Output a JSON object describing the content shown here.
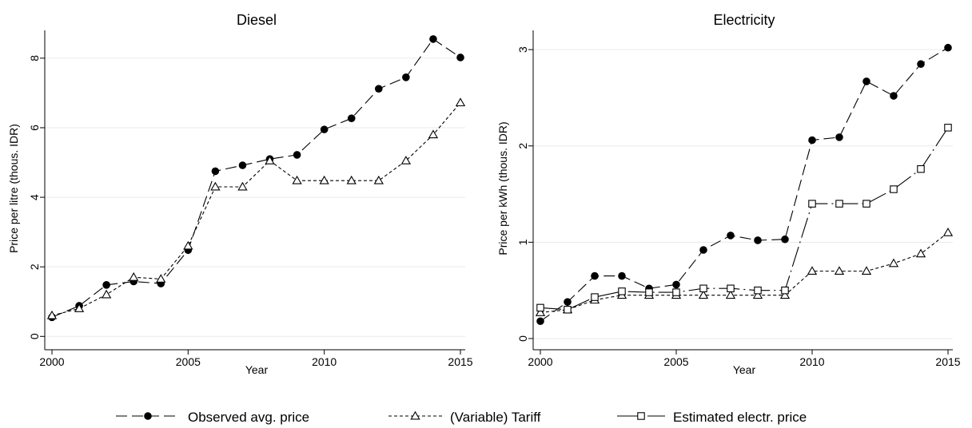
{
  "chart_data": [
    {
      "type": "line",
      "title": "Diesel",
      "xlabel": "Year",
      "ylabel": "Price per litre (thous. IDR)",
      "x": [
        2000,
        2001,
        2002,
        2003,
        2004,
        2005,
        2006,
        2007,
        2008,
        2009,
        2010,
        2011,
        2012,
        2013,
        2014,
        2015
      ],
      "xticks": [
        2000,
        2005,
        2010,
        2015
      ],
      "yticks": [
        0,
        2,
        4,
        6,
        8
      ],
      "xlim": [
        2000,
        2015
      ],
      "ylim": [
        -0.2,
        8.8
      ],
      "grid": true,
      "series": [
        {
          "name": "Observed avg. price",
          "marker": "filled-circle",
          "dash": "long-dash",
          "values": [
            0.55,
            0.88,
            1.48,
            1.58,
            1.52,
            2.48,
            4.75,
            4.92,
            5.1,
            5.22,
            5.95,
            6.27,
            7.12,
            7.45,
            8.55,
            8.02
          ]
        },
        {
          "name": "(Variable) Tariff",
          "marker": "hollow-triangle",
          "dash": "short-dash",
          "values": [
            0.6,
            0.8,
            1.2,
            1.7,
            1.65,
            2.6,
            4.3,
            4.3,
            5.05,
            4.48,
            4.48,
            4.48,
            4.48,
            5.05,
            5.8,
            6.72
          ]
        }
      ]
    },
    {
      "type": "line",
      "title": "Electricity",
      "xlabel": "Year",
      "ylabel": "Price per kWh (thous. IDR)",
      "x": [
        2000,
        2001,
        2002,
        2003,
        2004,
        2005,
        2006,
        2007,
        2008,
        2009,
        2010,
        2011,
        2012,
        2013,
        2014,
        2015
      ],
      "xticks": [
        2000,
        2005,
        2010,
        2015
      ],
      "yticks": [
        0,
        1,
        2,
        3
      ],
      "xlim": [
        2000,
        2015
      ],
      "ylim": [
        -0.05,
        3.2
      ],
      "grid": true,
      "series": [
        {
          "name": "Observed avg. price",
          "marker": "filled-circle",
          "dash": "long-dash",
          "values": [
            0.18,
            0.38,
            0.65,
            0.65,
            0.52,
            0.56,
            0.92,
            1.07,
            1.02,
            1.03,
            2.06,
            2.09,
            2.67,
            2.52,
            2.85,
            3.02
          ]
        },
        {
          "name": "(Variable) Tariff",
          "marker": "hollow-triangle",
          "dash": "short-dash",
          "values": [
            0.27,
            0.3,
            0.4,
            0.45,
            0.45,
            0.45,
            0.45,
            0.45,
            0.45,
            0.45,
            0.7,
            0.7,
            0.7,
            0.78,
            0.88,
            1.1
          ]
        },
        {
          "name": "Estimated electr. price",
          "marker": "hollow-square",
          "dash": "long-dash-dot",
          "values": [
            0.32,
            0.3,
            0.43,
            0.49,
            0.48,
            0.48,
            0.52,
            0.52,
            0.5,
            0.5,
            1.4,
            1.4,
            1.4,
            1.55,
            1.76,
            2.19
          ]
        }
      ]
    }
  ],
  "legend": {
    "position": "bottom-center",
    "entries": [
      {
        "label": "Observed avg. price",
        "marker": "filled-circle",
        "dash": "long-dash"
      },
      {
        "label": "(Variable) Tariff",
        "marker": "hollow-triangle",
        "dash": "short-dash"
      },
      {
        "label": "Estimated electr. price",
        "marker": "hollow-square",
        "dash": "long-dash-dot"
      }
    ]
  },
  "colors": {
    "line": "#000000",
    "grid": "#eaeaea",
    "background": "#ffffff"
  }
}
